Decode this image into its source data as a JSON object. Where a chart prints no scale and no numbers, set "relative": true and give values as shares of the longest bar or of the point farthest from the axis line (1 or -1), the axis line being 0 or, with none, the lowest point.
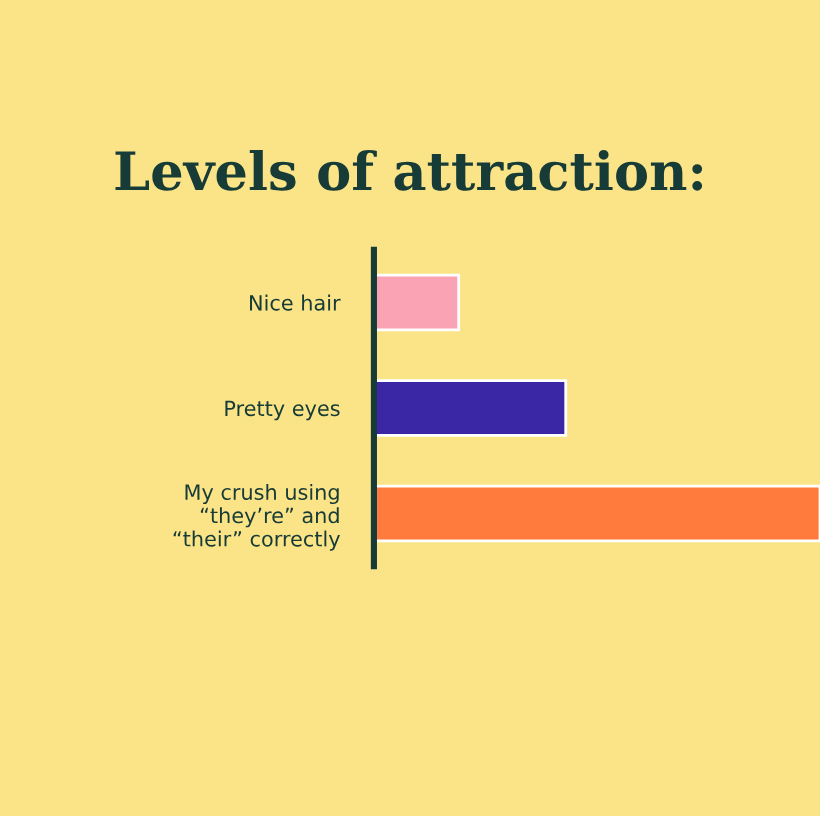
{
  "chart_data": {
    "type": "bar",
    "orientation": "horizontal",
    "relative": true,
    "title": "Levels of attraction:",
    "categories": [
      "Nice hair",
      "Pretty eyes",
      "My crush using\n“they’re” and\n“their” correctly"
    ],
    "values": [
      0.19,
      0.43,
      1
    ],
    "colors": [
      "#f9a3b5",
      "#3a27a6",
      "#ff7a3d"
    ],
    "grid": false,
    "legend": false
  }
}
